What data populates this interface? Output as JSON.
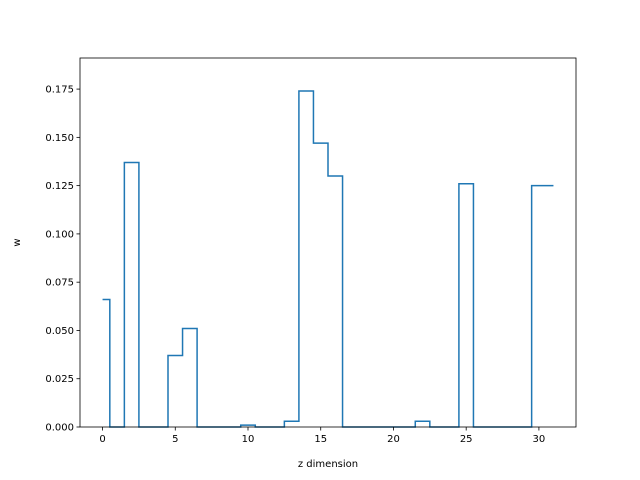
{
  "chart_data": {
    "type": "line",
    "style": "step (mid)",
    "xlabel": "z dimension",
    "ylabel": "w",
    "xlim": [
      -1.55,
      32.55
    ],
    "ylim": [
      0,
      0.1911
    ],
    "x_ticks": [
      0,
      5,
      10,
      15,
      20,
      25,
      30
    ],
    "x_tick_labels": [
      "0",
      "5",
      "10",
      "15",
      "20",
      "25",
      "30"
    ],
    "y_ticks": [
      0,
      0.025,
      0.05,
      0.075,
      0.1,
      0.125,
      0.15,
      0.175
    ],
    "y_tick_labels": [
      "0.000",
      "0.025",
      "0.050",
      "0.075",
      "0.100",
      "0.125",
      "0.150",
      "0.175"
    ],
    "grid": false,
    "x": [
      0,
      1,
      2,
      3,
      4,
      5,
      6,
      7,
      8,
      9,
      10,
      11,
      12,
      13,
      14,
      15,
      16,
      17,
      18,
      19,
      20,
      21,
      22,
      23,
      24,
      25,
      26,
      27,
      28,
      29,
      30,
      31
    ],
    "y": [
      0.066,
      0,
      0.137,
      0,
      0,
      0.037,
      0.051,
      0,
      0,
      0,
      0.001,
      0,
      0,
      0.003,
      0.174,
      0.147,
      0.13,
      0,
      0,
      0,
      0,
      0,
      0.003,
      0,
      0,
      0.126,
      0,
      0,
      0,
      0,
      0.125,
      0.125
    ],
    "colors": {
      "line": "#1f77b4",
      "axes": "#000000",
      "background": "#ffffff"
    }
  }
}
